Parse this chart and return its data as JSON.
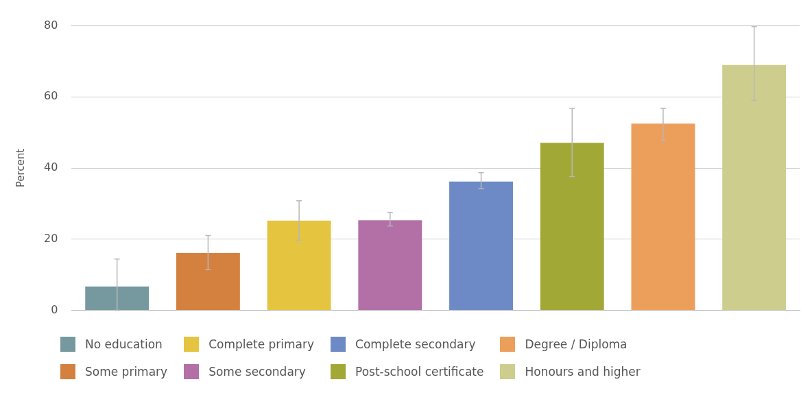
{
  "chart_data": {
    "type": "bar",
    "ylabel": "Percent",
    "categories": [
      null,
      null,
      null,
      null,
      null,
      null,
      null,
      null
    ],
    "ylim": [
      0,
      80
    ],
    "yticks": [
      0,
      20,
      40,
      60,
      80
    ],
    "grid": "y",
    "legend": "bottom",
    "series": [
      {
        "name": "No education",
        "color": "#76999f",
        "values": [
          6.7,
          null,
          null,
          null,
          null,
          null,
          null,
          null
        ],
        "errors": [
          [
            0,
            14.4
          ],
          null,
          null,
          null,
          null,
          null,
          null,
          null
        ]
      },
      {
        "name": "Some primary",
        "color": "#d4813f",
        "values": [
          null,
          16.1,
          null,
          null,
          null,
          null,
          null,
          null
        ],
        "errors": [
          null,
          [
            11.4,
            21.0
          ],
          null,
          null,
          null,
          null,
          null,
          null
        ]
      },
      {
        "name": "Complete primary",
        "color": "#e5c440",
        "values": [
          null,
          null,
          25.2,
          null,
          null,
          null,
          null,
          null
        ],
        "errors": [
          null,
          null,
          [
            19.7,
            30.8
          ],
          null,
          null,
          null,
          null,
          null
        ]
      },
      {
        "name": "Some secondary",
        "color": "#b270a6",
        "values": [
          null,
          null,
          null,
          25.3,
          null,
          null,
          null,
          null
        ],
        "errors": [
          null,
          null,
          null,
          [
            23.7,
            27.5
          ],
          null,
          null,
          null,
          null
        ]
      },
      {
        "name": "Complete secondary",
        "color": "#6e8ac6",
        "values": [
          null,
          null,
          null,
          null,
          36.2,
          null,
          null,
          null
        ],
        "errors": [
          null,
          null,
          null,
          null,
          [
            34.2,
            38.7
          ],
          null,
          null,
          null
        ]
      },
      {
        "name": "Post-school certificate",
        "color": "#a2a835",
        "values": [
          null,
          null,
          null,
          null,
          null,
          47.1,
          null,
          null
        ],
        "errors": [
          null,
          null,
          null,
          null,
          null,
          [
            37.6,
            56.8
          ],
          null,
          null
        ]
      },
      {
        "name": "Degree / Diploma",
        "color": "#ec9f5b",
        "values": [
          null,
          null,
          null,
          null,
          null,
          null,
          52.5,
          null
        ],
        "errors": [
          null,
          null,
          null,
          null,
          null,
          null,
          [
            47.8,
            56.8
          ],
          null
        ]
      },
      {
        "name": "Honours and higher",
        "color": "#cdcd8e",
        "values": [
          null,
          null,
          null,
          null,
          null,
          null,
          null,
          69.0
        ],
        "errors": [
          null,
          null,
          null,
          null,
          null,
          null,
          null,
          [
            59.0,
            79.8
          ]
        ]
      }
    ]
  }
}
